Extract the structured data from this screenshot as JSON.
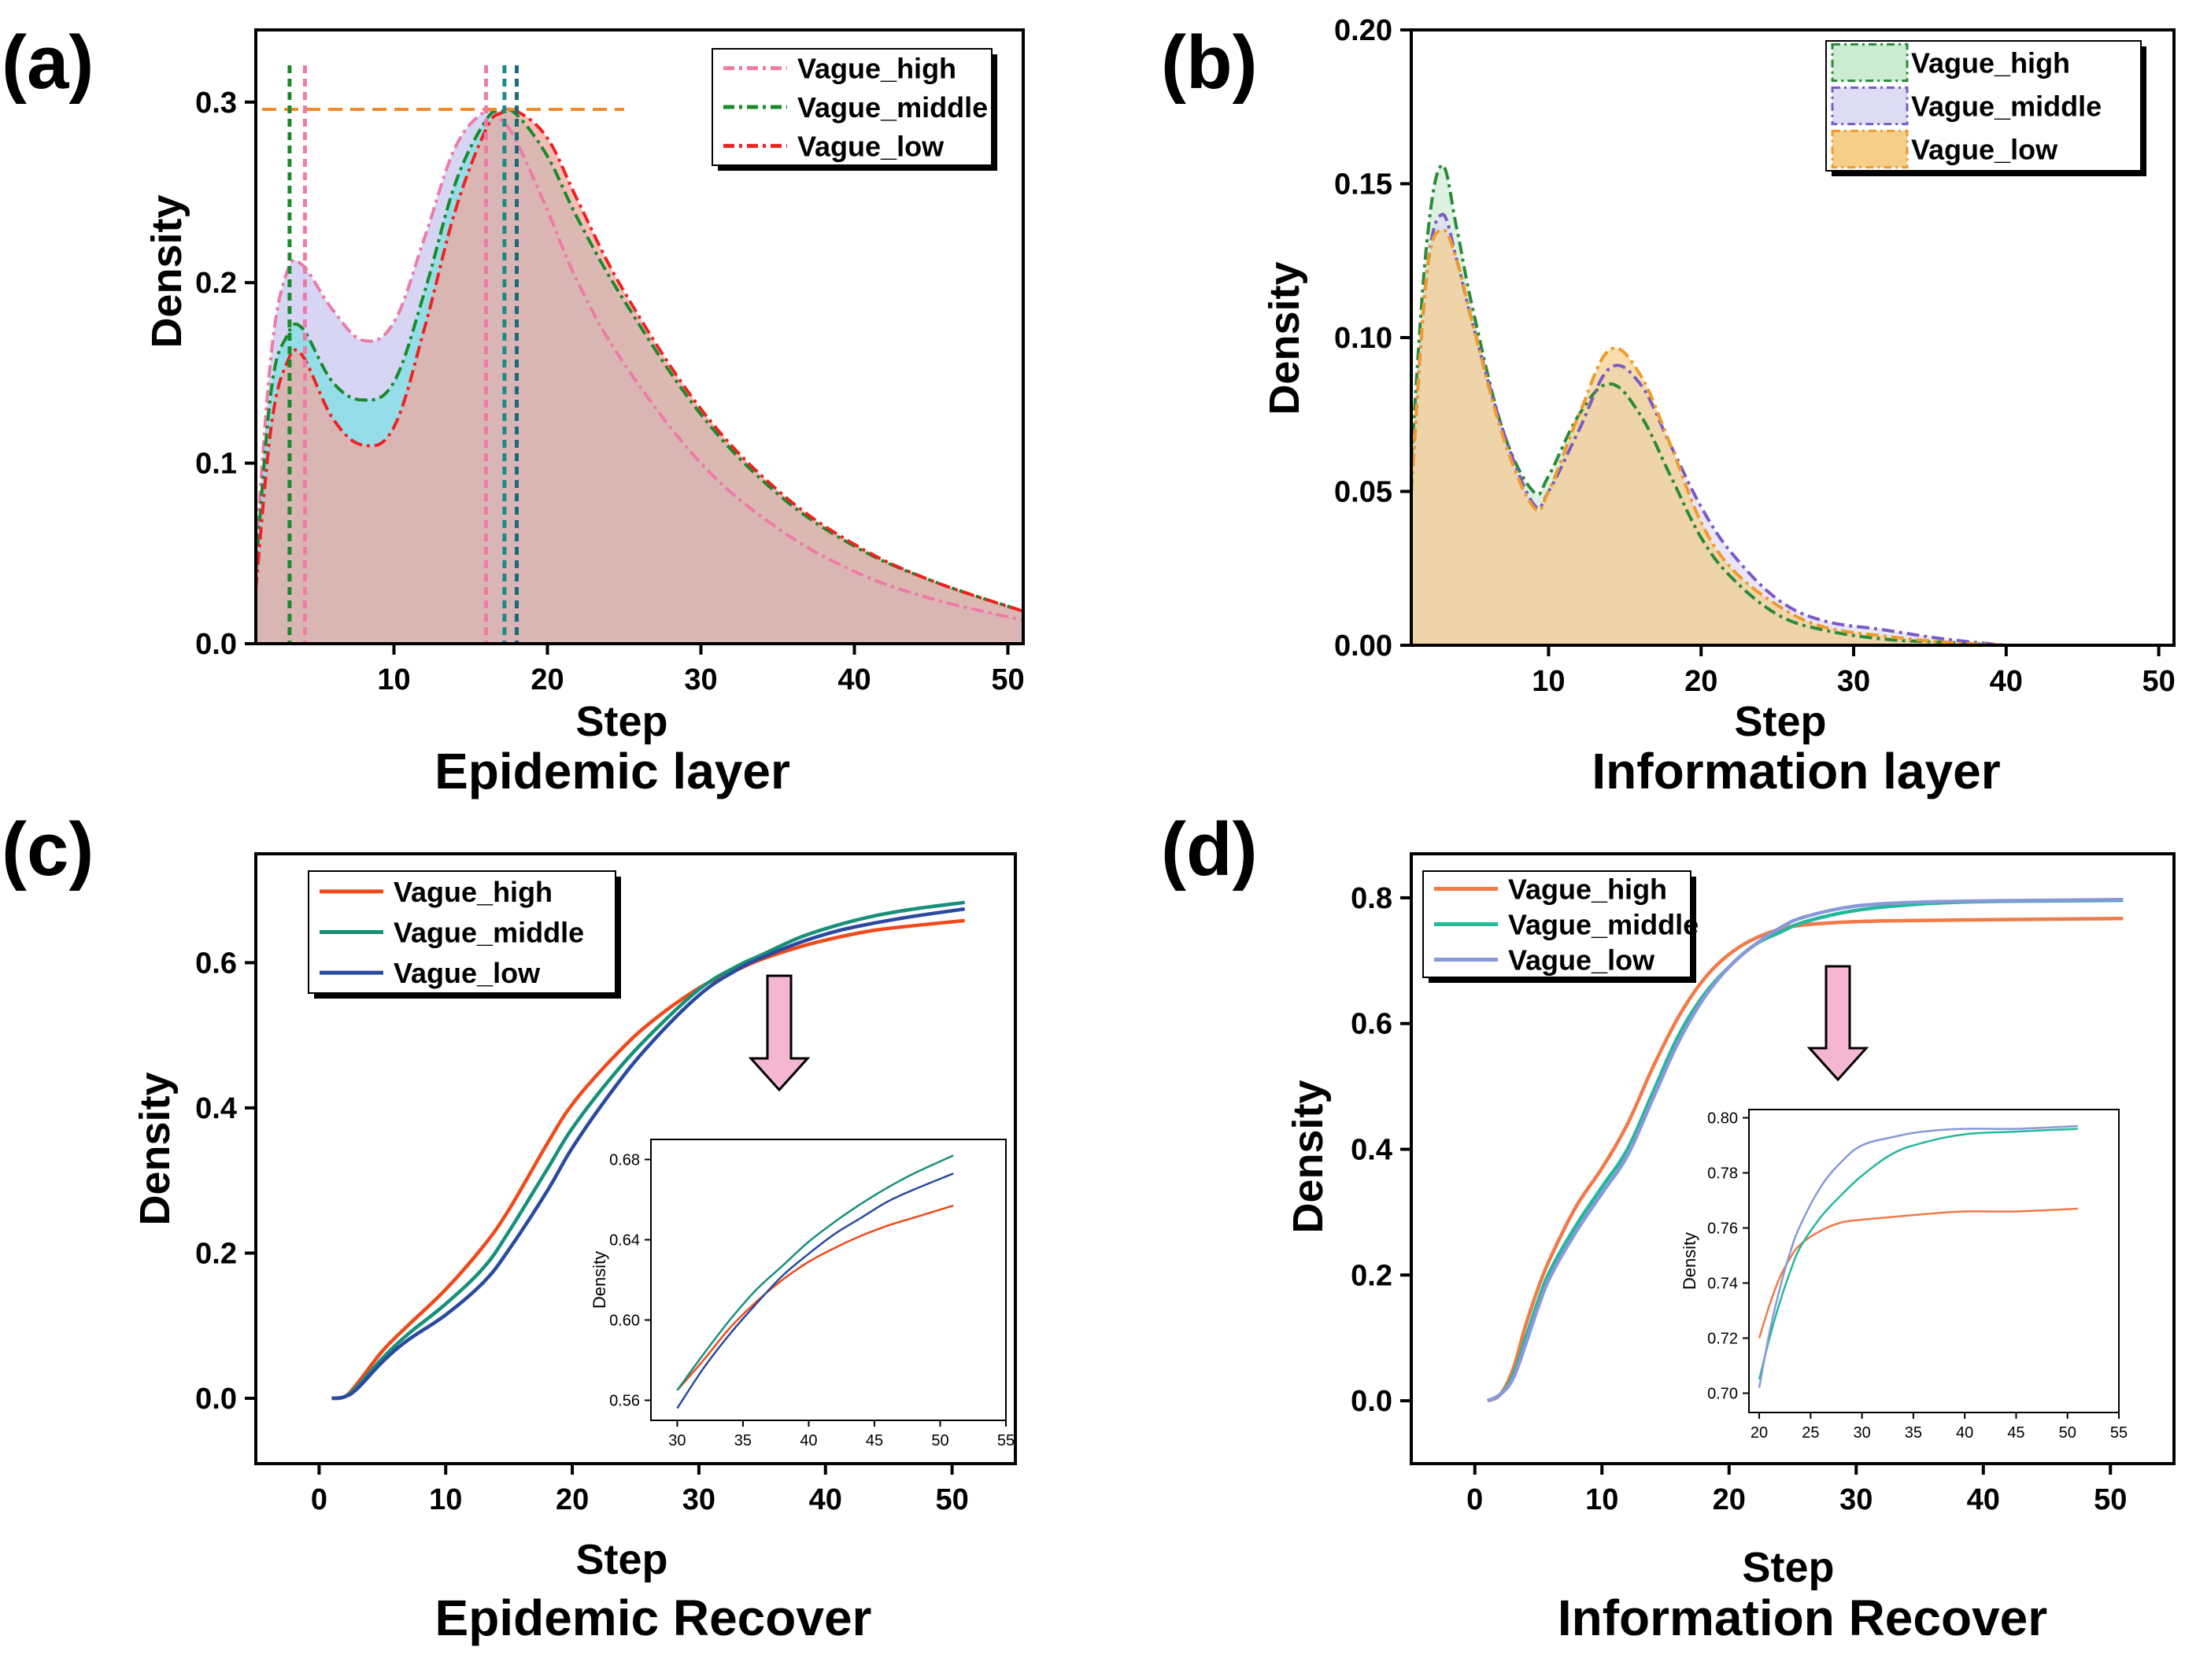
{
  "panels": {
    "a": {
      "letter": "(a)",
      "title": "Epidemic layer",
      "xlabel": "Step",
      "ylabel": "Density"
    },
    "b": {
      "letter": "(b)",
      "title": "Information layer",
      "xlabel": "Step",
      "ylabel": "Density"
    },
    "c": {
      "letter": "(c)",
      "title": "Epidemic Recover",
      "xlabel": "Step",
      "ylabel": "Density",
      "inset_ylabel": "Density"
    },
    "d": {
      "letter": "(d)",
      "title": "Information Recover",
      "xlabel": "Step",
      "ylabel": "Density",
      "inset_ylabel": "Density"
    }
  },
  "chart_data": [
    {
      "id": "a",
      "type": "area",
      "title": "Epidemic layer",
      "xlabel": "Step",
      "ylabel": "Density",
      "xlim": [
        1,
        51
      ],
      "ylim": [
        0,
        0.34
      ],
      "xticks": [
        10,
        20,
        30,
        40,
        50
      ],
      "yticks": [
        0.0,
        0.1,
        0.2,
        0.3
      ],
      "ytick_labels": [
        "0.0",
        "0.1",
        "0.2",
        "0.3"
      ],
      "legend_position": "top-right",
      "grid": false,
      "x": [
        1,
        2,
        3,
        4,
        6,
        8,
        10,
        12,
        14,
        16,
        17,
        18,
        20,
        22,
        25,
        30,
        35,
        40,
        45,
        51
      ],
      "series": [
        {
          "name": "Vague_high",
          "color": "#ee7aa8",
          "fill": "#c8c8f0",
          "values": [
            0.05,
            0.16,
            0.205,
            0.21,
            0.185,
            0.168,
            0.178,
            0.225,
            0.275,
            0.295,
            0.29,
            0.278,
            0.24,
            0.2,
            0.155,
            0.1,
            0.064,
            0.04,
            0.025,
            0.013
          ]
        },
        {
          "name": "Vague_middle",
          "color": "#1a8a2a",
          "fill": "#7fe0e6",
          "values": [
            0.04,
            0.14,
            0.17,
            0.175,
            0.145,
            0.135,
            0.145,
            0.195,
            0.255,
            0.29,
            0.295,
            0.293,
            0.27,
            0.235,
            0.19,
            0.127,
            0.083,
            0.054,
            0.035,
            0.018
          ]
        },
        {
          "name": "Vague_low",
          "color": "#ee2222",
          "fill": "#f0a8a0",
          "values": [
            0.03,
            0.12,
            0.155,
            0.16,
            0.125,
            0.11,
            0.12,
            0.175,
            0.24,
            0.285,
            0.294,
            0.295,
            0.28,
            0.245,
            0.195,
            0.13,
            0.085,
            0.055,
            0.035,
            0.018
          ]
        }
      ],
      "annotations": {
        "hline_y": 0.296,
        "vlines": [
          {
            "x": 3.2,
            "color": "#1a8a2a"
          },
          {
            "x": 4.2,
            "color": "#ee7aa8"
          },
          {
            "x": 16.0,
            "color": "#ee7aa8"
          },
          {
            "x": 17.2,
            "color": "#1a8a8a"
          },
          {
            "x": 18.0,
            "color": "#1a6a7a"
          }
        ]
      }
    },
    {
      "id": "b",
      "type": "area",
      "title": "Information layer",
      "xlabel": "Step",
      "ylabel": "Density",
      "xlim": [
        1,
        51
      ],
      "ylim": [
        0,
        0.2
      ],
      "xticks": [
        10,
        20,
        30,
        40,
        50
      ],
      "yticks": [
        0.0,
        0.05,
        0.1,
        0.15,
        0.2
      ],
      "ytick_labels": [
        "0.00",
        "0.05",
        "0.10",
        "0.15",
        "0.20"
      ],
      "legend_position": "top-right",
      "grid": false,
      "x": [
        1,
        2,
        3,
        4,
        5,
        7,
        9,
        10,
        12,
        14,
        16,
        18,
        20,
        22,
        25,
        28,
        32,
        36,
        40
      ],
      "series": [
        {
          "name": "Vague_high",
          "color": "#2a8a3a",
          "fill": "#cdebd2",
          "values": [
            0.06,
            0.13,
            0.156,
            0.135,
            0.11,
            0.07,
            0.05,
            0.055,
            0.075,
            0.085,
            0.075,
            0.055,
            0.035,
            0.022,
            0.01,
            0.005,
            0.002,
            0.001,
            0.0
          ]
        },
        {
          "name": "Vague_middle",
          "color": "#7a5ac8",
          "fill": "#dedcf4",
          "values": [
            0.05,
            0.12,
            0.14,
            0.125,
            0.105,
            0.07,
            0.046,
            0.05,
            0.07,
            0.09,
            0.085,
            0.065,
            0.045,
            0.03,
            0.015,
            0.008,
            0.005,
            0.002,
            0.0
          ]
        },
        {
          "name": "Vague_low",
          "color": "#f09a2a",
          "fill": "#f5cf8a",
          "values": [
            0.05,
            0.12,
            0.135,
            0.125,
            0.105,
            0.068,
            0.045,
            0.05,
            0.075,
            0.096,
            0.088,
            0.065,
            0.04,
            0.025,
            0.013,
            0.006,
            0.003,
            0.001,
            0.0
          ]
        }
      ]
    },
    {
      "id": "c",
      "type": "line",
      "title": "Epidemic Recover",
      "xlabel": "Step",
      "ylabel": "Density",
      "xlim": [
        -5,
        55
      ],
      "ylim": [
        -0.09,
        0.75
      ],
      "xticks": [
        0,
        10,
        20,
        30,
        40,
        50
      ],
      "yticks": [
        0.0,
        0.2,
        0.4,
        0.6
      ],
      "ytick_labels": [
        "0.0",
        "0.2",
        "0.4",
        "0.6"
      ],
      "legend_position": "top-left",
      "grid": false,
      "x": [
        1,
        2,
        3,
        5,
        7,
        10,
        13,
        15,
        18,
        20,
        23,
        26,
        30,
        33,
        35,
        38,
        41,
        44,
        47,
        51
      ],
      "series": [
        {
          "name": "Vague_high",
          "color": "#ef4a1a",
          "values": [
            0.0,
            0.002,
            0.02,
            0.065,
            0.1,
            0.15,
            0.21,
            0.26,
            0.35,
            0.405,
            0.465,
            0.515,
            0.565,
            0.59,
            0.605,
            0.622,
            0.635,
            0.645,
            0.651,
            0.658
          ]
        },
        {
          "name": "Vague_middle",
          "color": "#17907a",
          "values": [
            0.0,
            0.002,
            0.016,
            0.055,
            0.088,
            0.13,
            0.18,
            0.23,
            0.315,
            0.372,
            0.44,
            0.498,
            0.563,
            0.595,
            0.611,
            0.635,
            0.652,
            0.665,
            0.674,
            0.683
          ]
        },
        {
          "name": "Vague_low",
          "color": "#2a4aa0",
          "values": [
            0.0,
            0.002,
            0.013,
            0.05,
            0.08,
            0.115,
            0.16,
            0.205,
            0.285,
            0.345,
            0.42,
            0.485,
            0.555,
            0.59,
            0.607,
            0.628,
            0.644,
            0.655,
            0.664,
            0.674
          ]
        }
      ],
      "inset": {
        "ylabel": "Density",
        "xlim": [
          28,
          55
        ],
        "ylim": [
          0.55,
          0.69
        ],
        "xticks": [
          30,
          35,
          40,
          45,
          50,
          55
        ],
        "yticks": [
          0.56,
          0.6,
          0.64,
          0.68
        ],
        "ytick_labels": [
          "0.56",
          "0.60",
          "0.64",
          "0.68"
        ],
        "x": [
          30,
          32,
          34,
          36,
          38,
          40,
          42,
          44,
          46,
          48,
          51
        ],
        "values": [
          [
            0.565,
            0.58,
            0.596,
            0.609,
            0.62,
            0.629,
            0.636,
            0.642,
            0.647,
            0.651,
            0.657
          ],
          [
            0.565,
            0.583,
            0.6,
            0.615,
            0.627,
            0.639,
            0.649,
            0.658,
            0.666,
            0.673,
            0.682
          ],
          [
            0.556,
            0.576,
            0.593,
            0.608,
            0.622,
            0.633,
            0.643,
            0.651,
            0.659,
            0.665,
            0.673
          ]
        ]
      }
    },
    {
      "id": "d",
      "type": "line",
      "title": "Information Recover",
      "xlabel": "Step",
      "ylabel": "Density",
      "xlim": [
        -5,
        55
      ],
      "ylim": [
        -0.1,
        0.87
      ],
      "xticks": [
        0,
        10,
        20,
        30,
        40,
        50
      ],
      "yticks": [
        0.0,
        0.2,
        0.4,
        0.6,
        0.8
      ],
      "ytick_labels": [
        "0.0",
        "0.2",
        "0.4",
        "0.6",
        "0.8"
      ],
      "legend_position": "top-left",
      "grid": false,
      "x": [
        1,
        2,
        3,
        4,
        5,
        6,
        8,
        10,
        12,
        14,
        16,
        18,
        20,
        22,
        24,
        26,
        30,
        35,
        40,
        45,
        51
      ],
      "series": [
        {
          "name": "Vague_high",
          "color": "#f07a48",
          "values": [
            0.0,
            0.01,
            0.05,
            0.12,
            0.18,
            0.23,
            0.31,
            0.37,
            0.44,
            0.53,
            0.61,
            0.67,
            0.71,
            0.735,
            0.75,
            0.757,
            0.762,
            0.764,
            0.765,
            0.766,
            0.767
          ]
        },
        {
          "name": "Vague_middle",
          "color": "#22b89a",
          "values": [
            0.0,
            0.01,
            0.04,
            0.1,
            0.16,
            0.21,
            0.28,
            0.34,
            0.4,
            0.49,
            0.58,
            0.645,
            0.69,
            0.725,
            0.745,
            0.762,
            0.78,
            0.79,
            0.794,
            0.795,
            0.796
          ]
        },
        {
          "name": "Vague_low",
          "color": "#8898d8",
          "values": [
            0.0,
            0.01,
            0.035,
            0.09,
            0.15,
            0.2,
            0.27,
            0.33,
            0.39,
            0.48,
            0.57,
            0.64,
            0.69,
            0.725,
            0.752,
            0.77,
            0.787,
            0.793,
            0.795,
            0.796,
            0.797
          ]
        }
      ],
      "inset": {
        "ylabel": "Density",
        "xlim": [
          19,
          55
        ],
        "ylim": [
          0.693,
          0.803
        ],
        "xticks": [
          20,
          25,
          30,
          35,
          40,
          45,
          50,
          55
        ],
        "yticks": [
          0.7,
          0.72,
          0.74,
          0.76,
          0.78,
          0.8
        ],
        "ytick_labels": [
          "0.70",
          "0.72",
          "0.74",
          "0.76",
          "0.78",
          "0.80"
        ],
        "x": [
          20,
          21,
          22,
          23,
          24,
          26,
          28,
          30,
          33,
          36,
          40,
          45,
          51
        ],
        "values": [
          [
            0.72,
            0.732,
            0.742,
            0.749,
            0.754,
            0.759,
            0.762,
            0.763,
            0.764,
            0.765,
            0.766,
            0.766,
            0.767
          ],
          [
            0.705,
            0.72,
            0.733,
            0.744,
            0.753,
            0.764,
            0.772,
            0.779,
            0.787,
            0.791,
            0.794,
            0.795,
            0.796
          ],
          [
            0.702,
            0.722,
            0.738,
            0.751,
            0.761,
            0.775,
            0.784,
            0.79,
            0.793,
            0.795,
            0.796,
            0.796,
            0.797
          ]
        ]
      }
    }
  ]
}
